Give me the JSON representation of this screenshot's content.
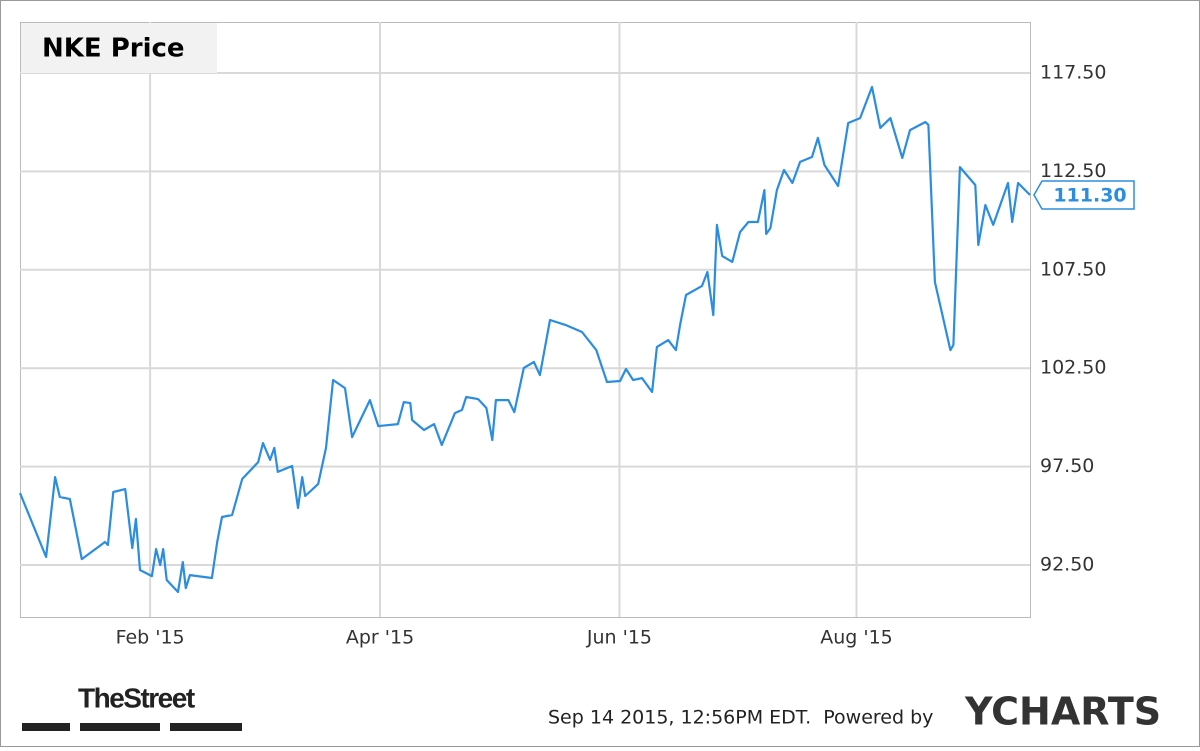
{
  "chart_data": {
    "type": "line",
    "title": "NKE Price",
    "x": [
      0,
      4.4,
      5.9,
      6.7,
      8.4,
      10.4,
      14.3,
      14.8,
      15.7,
      17.7,
      18.9,
      19.5,
      20.2,
      22.2,
      22.9,
      23.6,
      24.1,
      24.7,
      26.6,
      27.4,
      27.9,
      28.6,
      32.3,
      33.2,
      34.0,
      35.7,
      37.4,
      40.1,
      40.9,
      42.1,
      42.8,
      43.4,
      45.8,
      46.8,
      47.5,
      48.0,
      50.2,
      51.5,
      52.7,
      54.7,
      55.9,
      58.9,
      60.3,
      63.6,
      64.6,
      65.7,
      66.0,
      68.0,
      69.7,
      71.0,
      73.2,
      74.4,
      75.1,
      77.1,
      78.5,
      79.5,
      80.1,
      82.2,
      83.2,
      84.8,
      86.5,
      87.5,
      89.2,
      91.8,
      94.6,
      97.0,
      98.8,
      101.0,
      102.0,
      103.2,
      104.7,
      106.4,
      107.2,
      109.1,
      110.4,
      111.1,
      112.1,
      114.8,
      115.7,
      116.7,
      117.3,
      118.2,
      119.9,
      121.2,
      122.6,
      124.2,
      125.3,
      125.6,
      126.3,
      127.4,
      128.6,
      130.0,
      131.3,
      133.3,
      134.3,
      135.4,
      137.7,
      139.4,
      141.4,
      143.4,
      144.8,
      146.5,
      148.5,
      149.8,
      152.4,
      152.9,
      154.0,
      156.6,
      157.1,
      158.2,
      160.8,
      161.3,
      162.5,
      163.8,
      166.3,
      167.0,
      168.0,
      170
    ],
    "series": [
      {
        "name": "NKE",
        "color": "#2b8de0",
        "values": [
          96.16,
          92.91,
          96.97,
          95.96,
          95.85,
          92.8,
          93.67,
          93.52,
          96.21,
          96.36,
          93.36,
          94.84,
          92.25,
          91.94,
          93.31,
          92.5,
          93.31,
          91.74,
          91.13,
          92.65,
          91.33,
          91.99,
          91.84,
          93.67,
          94.94,
          95.04,
          96.87,
          97.73,
          98.7,
          97.84,
          98.45,
          97.23,
          97.53,
          95.4,
          96.97,
          96.01,
          96.62,
          98.45,
          101.9,
          101.49,
          99.0,
          100.88,
          99.56,
          99.66,
          100.78,
          100.73,
          99.87,
          99.36,
          99.66,
          98.6,
          100.22,
          100.38,
          101.04,
          100.93,
          100.48,
          98.85,
          100.88,
          100.88,
          100.27,
          102.51,
          102.82,
          102.15,
          104.95,
          104.7,
          104.34,
          103.42,
          101.8,
          101.85,
          102.46,
          101.9,
          102.0,
          101.29,
          103.58,
          103.93,
          103.42,
          104.7,
          106.22,
          106.68,
          107.39,
          105.2,
          109.78,
          108.2,
          107.9,
          109.42,
          109.93,
          109.93,
          111.55,
          109.32,
          109.62,
          111.55,
          112.57,
          111.91,
          112.98,
          113.23,
          114.2,
          112.83,
          111.76,
          114.96,
          115.21,
          116.79,
          114.71,
          115.21,
          113.18,
          114.6,
          115.01,
          114.86,
          106.88,
          103.42,
          103.68,
          112.72,
          111.81,
          108.76,
          110.79,
          109.78,
          111.91,
          109.93,
          111.91,
          111.3
        ],
        "last_label": "111.30"
      }
    ],
    "xlim": [
      0,
      170
    ],
    "xticks": [
      {
        "value": 21.9,
        "label": "Feb '15"
      },
      {
        "value": 60.6,
        "label": "Apr '15"
      },
      {
        "value": 100.9,
        "label": "Jun '15"
      },
      {
        "value": 140.8,
        "label": "Aug '15"
      }
    ],
    "ylim": [
      89.86,
      120.09
    ],
    "yticks": [
      {
        "value": 92.5,
        "label": "92.50"
      },
      {
        "value": 97.5,
        "label": "97.50"
      },
      {
        "value": 102.5,
        "label": "102.50"
      },
      {
        "value": 107.5,
        "label": "107.50"
      },
      {
        "value": 112.5,
        "label": "112.50"
      },
      {
        "value": 117.5,
        "label": "117.50"
      }
    ],
    "grid": true
  },
  "footer": {
    "source": "TheStreet",
    "timestamp": "Sep 14 2015, 12:56PM EDT.  Powered by",
    "brand": "YCHARTS"
  }
}
